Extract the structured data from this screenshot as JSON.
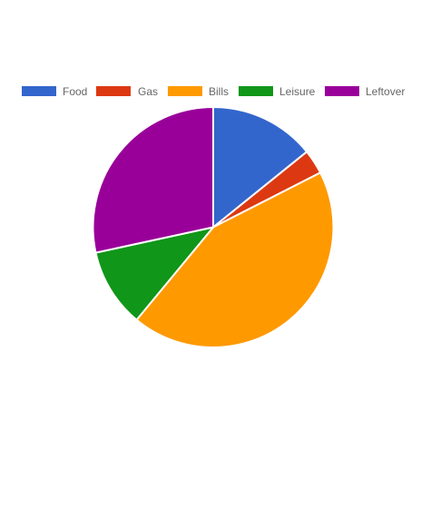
{
  "chart_data": {
    "type": "pie",
    "legend_position": "top",
    "series": [
      {
        "categories": [
          "Food",
          "Gas",
          "Bills",
          "Leisure",
          "Leftover"
        ],
        "values": [
          14.2,
          3.3,
          43.5,
          10.6,
          28.4
        ],
        "colors": [
          "#3366cc",
          "#dc3912",
          "#ff9900",
          "#109618",
          "#990099"
        ]
      }
    ]
  }
}
